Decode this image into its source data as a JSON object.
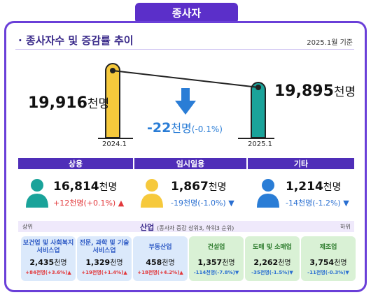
{
  "header": {
    "tab_title": "종사자"
  },
  "section": {
    "title": "· 종사자수 및 증감률 추이",
    "as_of": "2025.1월 기준"
  },
  "trend": {
    "left": {
      "year": "2024.1",
      "value": "19,916",
      "unit": "천명"
    },
    "right": {
      "year": "2025.1",
      "value": "19,895",
      "unit": "천명"
    },
    "change_value": "-22",
    "change_unit": "천명",
    "change_pct": "(-0.1%)"
  },
  "status": [
    {
      "label": "상용",
      "value": "16,814",
      "unit": "천명",
      "change": "+12천명(+0.1%)",
      "dir": "up",
      "color": "#1aa39a"
    },
    {
      "label": "임시일용",
      "value": "1,867",
      "unit": "천명",
      "change": "-19천명(-1.0%)",
      "dir": "down",
      "color": "#f6c93c"
    },
    {
      "label": "기타",
      "value": "1,214",
      "unit": "천명",
      "change": "-14천명(-1.2%)",
      "dir": "down",
      "color": "#2a7dd6"
    }
  ],
  "industry": {
    "left_label": "상위",
    "right_label": "하위",
    "title": "산업",
    "subtitle": "(종사자 증감 상위3, 하위3 순위)",
    "cards": [
      {
        "name": "보건업 및 사회복지 서비스업",
        "value": "2,435",
        "unit": "천명",
        "change": "+84천명(+3.6%)",
        "dir": "up",
        "tone": "blue"
      },
      {
        "name": "전문, 과학 및 기술 서비스업",
        "value": "1,329",
        "unit": "천명",
        "change": "+19천명(+1.4%)",
        "dir": "up",
        "tone": "blue"
      },
      {
        "name": "부동산업",
        "value": "458",
        "unit": "천명",
        "change": "+18천명(+4.2%)",
        "dir": "up",
        "tone": "blue"
      },
      {
        "name": "건설업",
        "value": "1,357",
        "unit": "천명",
        "change": "-114천명(-7.8%)",
        "dir": "down",
        "tone": "green"
      },
      {
        "name": "도매 및 소매업",
        "value": "2,262",
        "unit": "천명",
        "change": "-35천명(-1.5%)",
        "dir": "down",
        "tone": "green"
      },
      {
        "name": "제조업",
        "value": "3,754",
        "unit": "천명",
        "change": "-11천명(-0.3%)",
        "dir": "down",
        "tone": "green"
      }
    ]
  }
}
